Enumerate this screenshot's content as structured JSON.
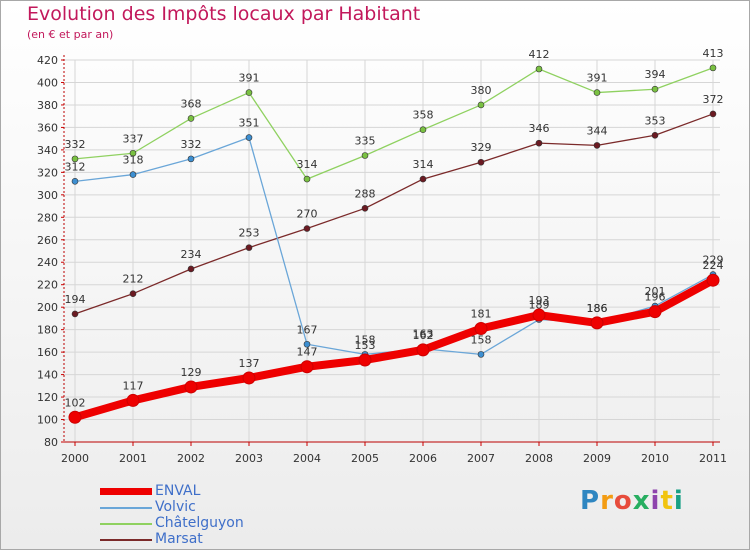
{
  "title": "Evolution des Impôts locaux par Habitant",
  "subtitle": "(en € et par an)",
  "logo_text": "Proxiti",
  "chart_data": {
    "type": "line",
    "title": "Evolution des Impôts locaux par Habitant",
    "subtitle": "(en € et par an)",
    "xlabel": "",
    "ylabel": "",
    "x": [
      "2000",
      "2001",
      "2002",
      "2003",
      "2004",
      "2005",
      "2006",
      "2007",
      "2008",
      "2009",
      "2010",
      "2011"
    ],
    "ylim": [
      80,
      420
    ],
    "yticks": [
      80,
      100,
      120,
      140,
      160,
      180,
      200,
      220,
      240,
      260,
      280,
      300,
      320,
      340,
      360,
      380,
      400,
      420
    ],
    "grid": true,
    "legend_position": "bottom-left",
    "series": [
      {
        "name": "Marsat",
        "color": "#7b2a2a",
        "marker": "#6b1a22",
        "values": [
          194,
          212,
          234,
          253,
          270,
          288,
          314,
          329,
          346,
          344,
          353,
          372
        ]
      },
      {
        "name": "Châtelguyon",
        "color": "#8fd160",
        "marker": "#7ac142",
        "values": [
          332,
          337,
          368,
          391,
          314,
          335,
          358,
          380,
          412,
          391,
          394,
          413
        ]
      },
      {
        "name": "Volvic",
        "color": "#6aa6d8",
        "marker": "#3d8fd1",
        "values": [
          312,
          318,
          332,
          351,
          167,
          158,
          163,
          158,
          189,
          186,
          201,
          229
        ]
      },
      {
        "name": "ENVAL",
        "color": "#ee0000",
        "marker": "#ee0000",
        "values": [
          102,
          117,
          129,
          137,
          147,
          153,
          162,
          181,
          193,
          186,
          196,
          224
        ]
      }
    ]
  },
  "legend_items": [
    "ENVAL",
    "Volvic",
    "Châtelguyon",
    "Marsat"
  ]
}
